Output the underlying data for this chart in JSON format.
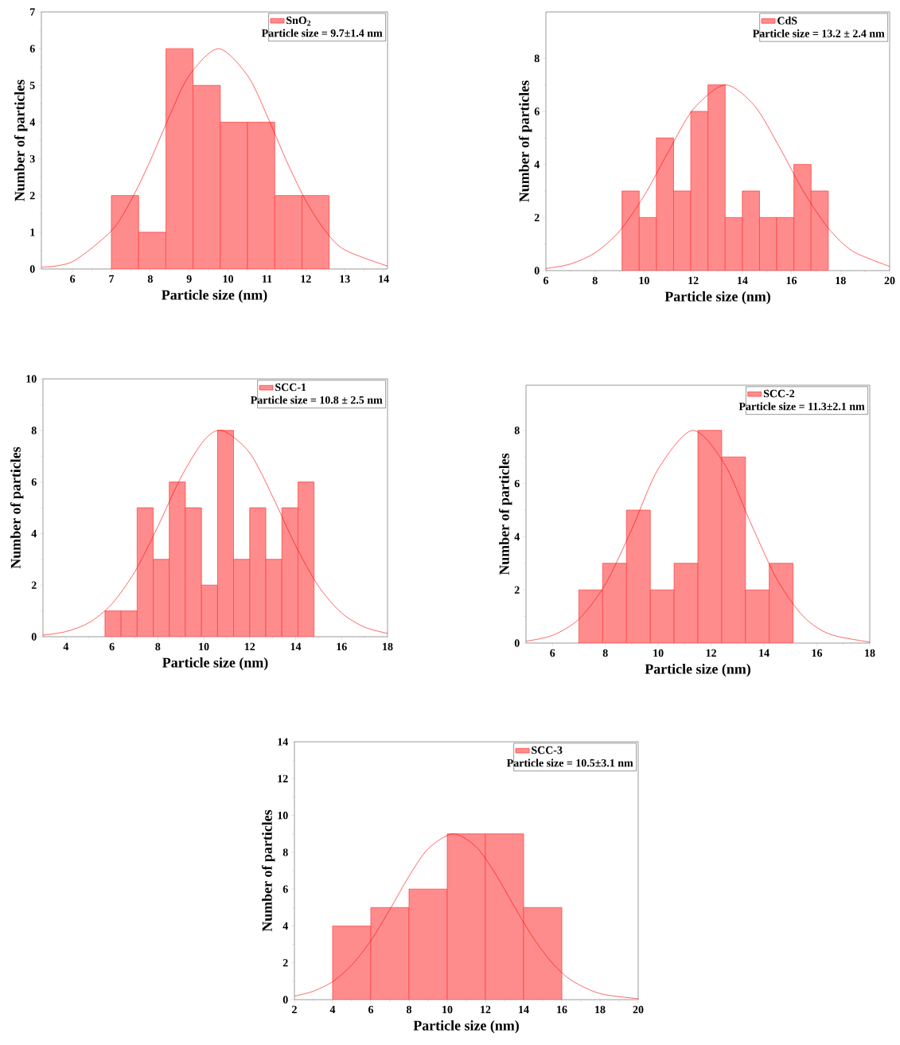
{
  "chart_data": [
    {
      "type": "histogram",
      "xlabel": "Particle size (nm)",
      "ylabel": "Number of particles",
      "xlim": [
        5.2,
        14.1
      ],
      "ylim": [
        0,
        7
      ],
      "xticks": [
        6,
        7,
        8,
        9,
        10,
        11,
        12,
        13,
        14
      ],
      "yticks": [
        0,
        1,
        2,
        3,
        4,
        5,
        6,
        7
      ],
      "legend": "top right",
      "annotations": [
        "Particle size = 9.7±1.4 nm"
      ],
      "series": [
        {
          "name": "SnO$_{2}$",
          "color": "#ff8c8c",
          "bins": [
            7.0,
            7.7,
            8.4,
            9.1,
            9.8,
            10.5,
            11.2,
            11.9,
            12.6
          ],
          "values": [
            2,
            1,
            6,
            5,
            4,
            4,
            2,
            2
          ]
        },
        {
          "type": "line",
          "color": "#ff0000",
          "x": [
            5.2,
            6,
            7,
            7.5,
            8,
            8.5,
            9,
            9.75,
            10.5,
            11,
            11.5,
            12,
            12.5,
            13,
            14.1
          ],
          "values": [
            0.05,
            0.2,
            1.04,
            1.86,
            2.95,
            4.18,
            5.27,
            6,
            5.27,
            4.18,
            2.95,
            1.86,
            1.04,
            0.52,
            0.08
          ]
        }
      ]
    },
    {
      "type": "histogram",
      "xlabel": "Particle size (nm)",
      "ylabel": "Number of particles",
      "xlim": [
        6,
        20
      ],
      "ylim": [
        0,
        9.75
      ],
      "xticks": [
        6,
        8,
        10,
        12,
        14,
        16,
        18,
        20
      ],
      "yticks": [
        0,
        2,
        4,
        6,
        8
      ],
      "legend": "top right",
      "annotations": [
        "Particle size = 13.2 ± 2.4 nm"
      ],
      "series": [
        {
          "name": "CdS",
          "color": "#ff8c8c",
          "bins": [
            9.1,
            9.8,
            10.5,
            11.2,
            11.9,
            12.6,
            13.3,
            14.0,
            14.7,
            15.4,
            16.1,
            16.8,
            17.5
          ],
          "values": [
            3,
            2,
            5,
            3,
            6,
            7,
            2,
            3,
            2,
            2,
            4,
            3
          ]
        },
        {
          "type": "line",
          "color": "#ff0000",
          "x": [
            6,
            7,
            8,
            9,
            10,
            11,
            12,
            13.3,
            14.5,
            15.5,
            16.5,
            17.5,
            18.5,
            20
          ],
          "values": [
            0.08,
            0.25,
            0.67,
            1.49,
            2.82,
            4.5,
            6.08,
            7,
            6.21,
            4.67,
            2.97,
            1.6,
            0.73,
            0.16
          ]
        }
      ]
    },
    {
      "type": "histogram",
      "xlabel": "Particle size (nm)",
      "ylabel": "Number of particles",
      "xlim": [
        3,
        18
      ],
      "ylim": [
        0,
        10
      ],
      "xticks": [
        4,
        6,
        8,
        10,
        12,
        14,
        16,
        18
      ],
      "yticks": [
        0,
        2,
        4,
        6,
        8,
        10
      ],
      "legend": "top right",
      "annotations": [
        "Particle size = 10.8 ± 2.5 nm"
      ],
      "series": [
        {
          "name": "SCC-1",
          "color": "#ff8c8c",
          "bins": [
            5.7,
            6.4,
            7.1,
            7.8,
            8.5,
            9.2,
            9.9,
            10.6,
            11.3,
            12.0,
            12.7,
            13.4,
            14.1,
            14.8
          ],
          "values": [
            1,
            1,
            5,
            3,
            6,
            5,
            2,
            8,
            3,
            5,
            3,
            5,
            6
          ]
        },
        {
          "type": "line",
          "color": "#ff0000",
          "x": [
            3,
            4,
            5,
            6,
            7,
            8,
            9,
            10,
            10.8,
            12,
            13,
            14,
            15,
            16,
            17,
            18
          ],
          "values": [
            0.06,
            0.2,
            0.54,
            1.27,
            2.52,
            4.27,
            6.17,
            7.6,
            8,
            7.13,
            5.43,
            3.53,
            1.95,
            0.92,
            0.37,
            0.13
          ]
        }
      ]
    },
    {
      "type": "histogram",
      "xlabel": "Particle size (nm)",
      "ylabel": "Number of particles",
      "xlim": [
        5,
        18
      ],
      "ylim": [
        0,
        9.7
      ],
      "xticks": [
        6,
        8,
        10,
        12,
        14,
        16,
        18
      ],
      "yticks": [
        0,
        2,
        4,
        6,
        8
      ],
      "legend": "top right",
      "annotations": [
        "Particle size = 11.3±2.1 nm"
      ],
      "series": [
        {
          "name": "SCC-2",
          "color": "#ff8c8c",
          "bins": [
            7.0,
            7.9,
            8.8,
            9.7,
            10.6,
            11.5,
            12.4,
            13.3,
            14.2,
            15.1
          ],
          "values": [
            2,
            3,
            5,
            2,
            3,
            8,
            7,
            2,
            3
          ]
        },
        {
          "type": "line",
          "color": "#ff0000",
          "x": [
            5,
            6,
            7,
            8,
            9,
            10,
            11.3,
            12.5,
            13.5,
            14.5,
            15.5,
            16.5,
            18
          ],
          "values": [
            0.07,
            0.29,
            0.9,
            2.21,
            4.28,
            6.55,
            8,
            6.75,
            4.51,
            2.38,
            0.99,
            0.33,
            0.04
          ]
        }
      ]
    },
    {
      "type": "histogram",
      "xlabel": "Particle size (nm)",
      "ylabel": "Number of particles",
      "xlim": [
        2,
        20
      ],
      "ylim": [
        0,
        14
      ],
      "xticks": [
        2,
        4,
        6,
        8,
        10,
        12,
        14,
        16,
        18,
        20
      ],
      "yticks": [
        0,
        2,
        4,
        6,
        8,
        10,
        12,
        14
      ],
      "legend": "top right",
      "annotations": [
        "Particle size = 10.5±3.1 nm"
      ],
      "series": [
        {
          "name": "SCC-3",
          "color": "#ff8c8c",
          "bins": [
            4,
            6,
            8,
            10,
            12,
            14,
            16
          ],
          "values": [
            4,
            5,
            6,
            9,
            9,
            5
          ]
        },
        {
          "type": "line",
          "color": "#ff0000",
          "x": [
            2,
            3,
            4,
            5,
            6,
            7,
            8,
            9,
            10.3,
            11.5,
            12.5,
            13.5,
            14.5,
            15.5,
            16.5,
            18,
            20
          ],
          "values": [
            0.19,
            0.46,
            0.98,
            1.88,
            3.2,
            4.9,
            6.7,
            8.19,
            9,
            8.31,
            6.87,
            5.08,
            3.36,
            1.99,
            1.05,
            0.33,
            0.05
          ]
        }
      ]
    }
  ]
}
